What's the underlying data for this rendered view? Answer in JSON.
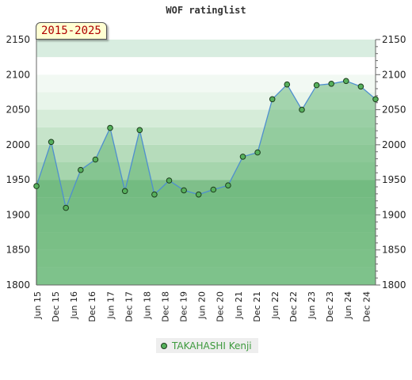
{
  "chart_data": {
    "type": "area",
    "title": "WOF ratinglist",
    "period_label": "2015-2025",
    "ylim": [
      1800,
      2150
    ],
    "yticks": [
      1800,
      1850,
      1900,
      1950,
      2000,
      2050,
      2100,
      2150
    ],
    "xtick_labels": [
      "Jun 15",
      "Dec 15",
      "Jun 16",
      "Dec 16",
      "Jun 17",
      "Dec 17",
      "Jun 18",
      "Dec 18",
      "Dec 19",
      "Jun 20",
      "Dec 20",
      "Jun 21",
      "Dec 21",
      "Jun 22",
      "Dec 22",
      "Jun 23",
      "Dec 23",
      "Jun 24",
      "Dec 24"
    ],
    "series": [
      {
        "name": "TAKAHASHI Kenji",
        "values": [
          1941,
          2004,
          1910,
          1964,
          1979,
          2024,
          1934,
          2021,
          1929,
          1949,
          1935,
          1929,
          1936,
          1942,
          1983,
          1989,
          2065,
          2086,
          2050,
          2085,
          2087,
          2091,
          2083,
          2065
        ]
      }
    ],
    "grid": true,
    "legend_position": "bottom",
    "colors": {
      "line": "#4f8fcf",
      "marker_fill": "#56b05c",
      "marker_edge": "#1d3d1d",
      "area_fill": "#6ab87a",
      "legend_text": "#3d9a3d"
    }
  }
}
